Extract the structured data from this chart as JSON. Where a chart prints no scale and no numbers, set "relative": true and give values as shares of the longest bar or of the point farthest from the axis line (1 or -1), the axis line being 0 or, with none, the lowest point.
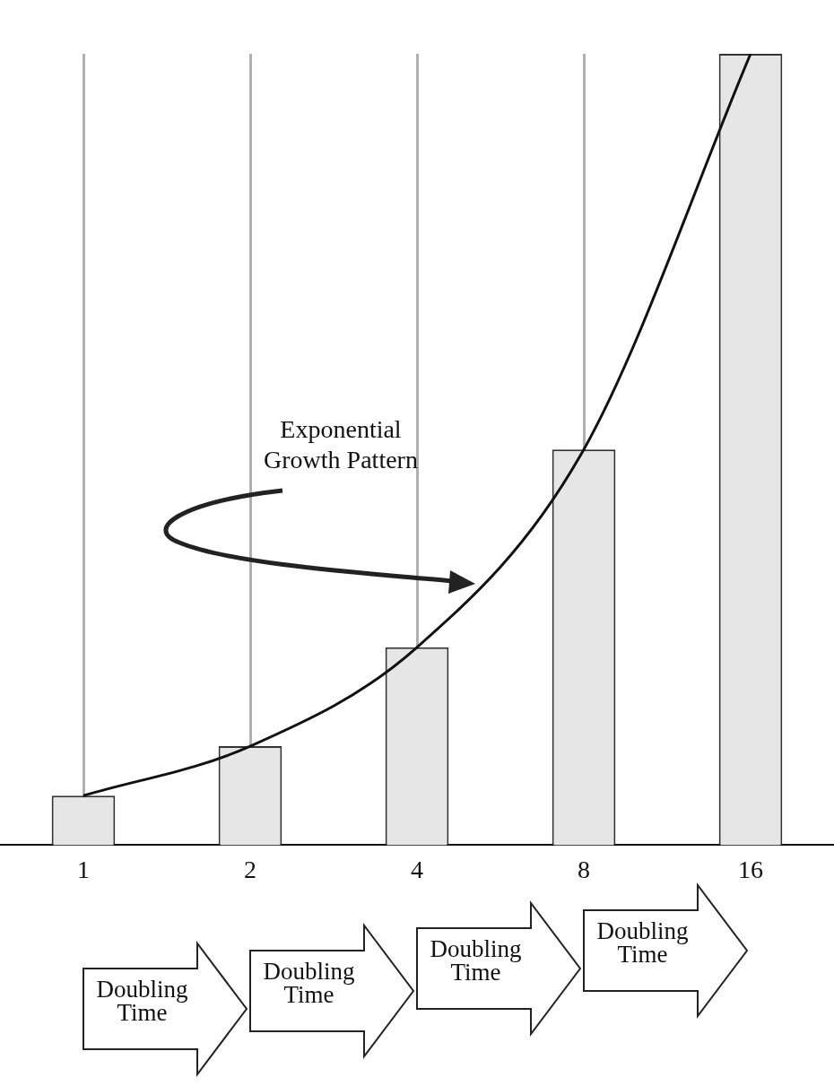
{
  "chart_data": {
    "type": "bar",
    "relative": true,
    "grid": "x",
    "categories": [
      "1",
      "2",
      "4",
      "8",
      "16"
    ],
    "series": [
      {
        "color": "#e6e6e6",
        "values": [
          0.0625,
          0.125,
          0.25,
          0.5,
          1
        ]
      },
      {
        "type": "line",
        "color": "#111111",
        "values": [
          0.0625,
          0.125,
          0.25,
          0.5,
          1
        ]
      }
    ],
    "annotations": [
      "Exponential Growth Pattern",
      "Doubling Time",
      "Doubling Time",
      "Doubling Time",
      "Doubling Time"
    ]
  }
}
